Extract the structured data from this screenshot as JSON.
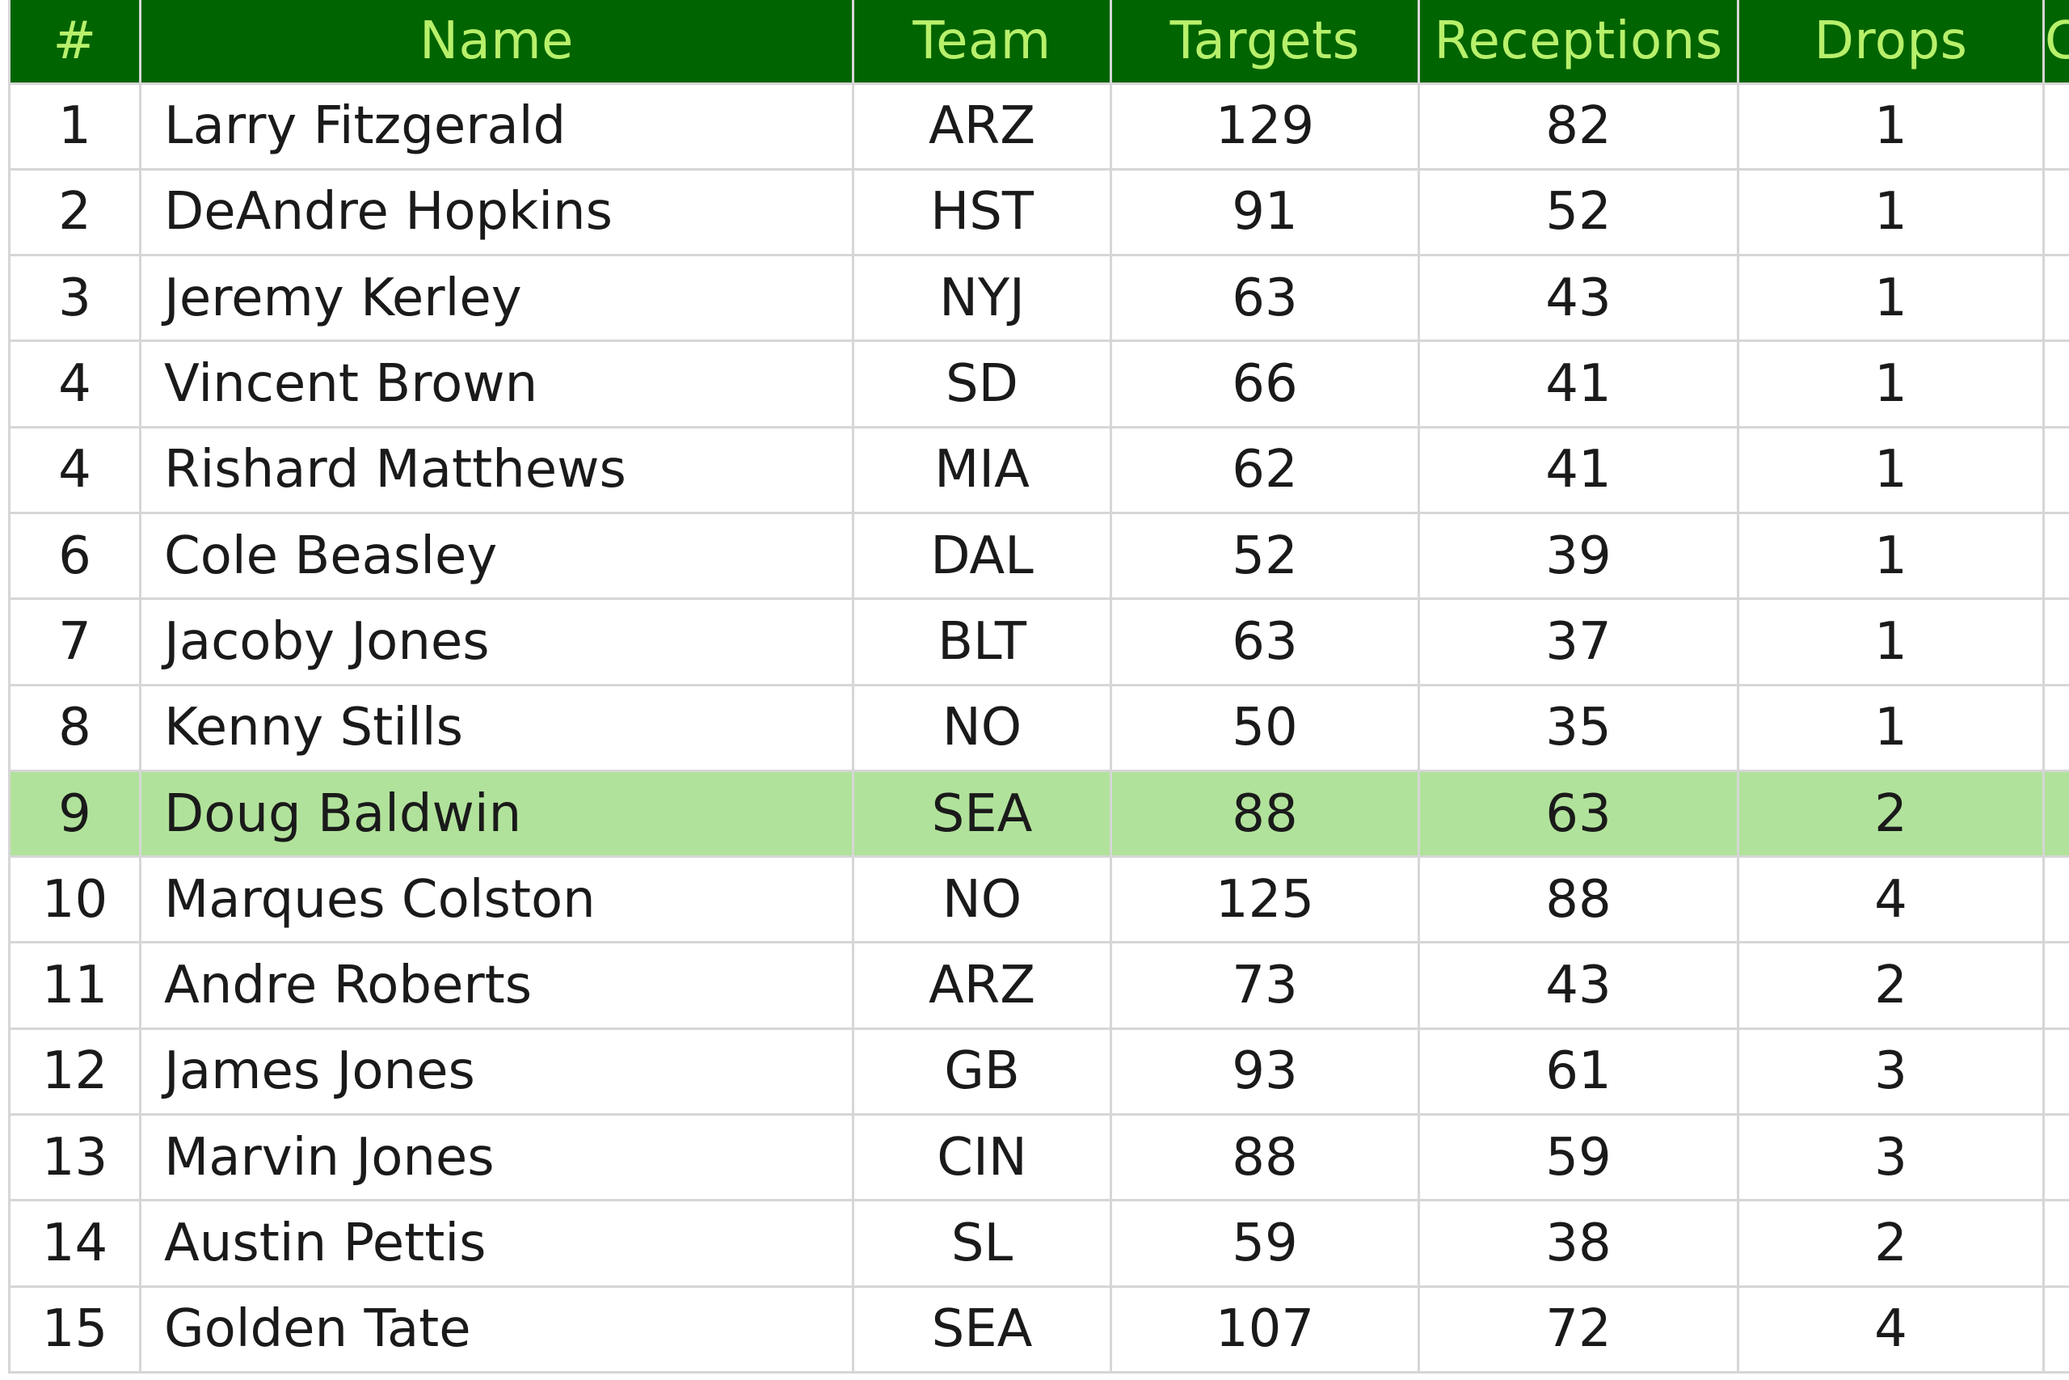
{
  "header": {
    "rank": "#",
    "name": "Name",
    "team": "Team",
    "targets": "Targets",
    "receptions": "Receptions",
    "drops": "Drops",
    "extra": "C"
  },
  "colors": {
    "header_bg": "#006400",
    "header_text": "#b8f06b",
    "highlight_row": "#b1e29b",
    "grid": "#d6d6d6"
  },
  "highlighted_row_index": 8,
  "rows": [
    {
      "rank": "1",
      "name": "Larry Fitzgerald",
      "team": "ARZ",
      "targets": "129",
      "receptions": "82",
      "drops": "1"
    },
    {
      "rank": "2",
      "name": "DeAndre Hopkins",
      "team": "HST",
      "targets": "91",
      "receptions": "52",
      "drops": "1"
    },
    {
      "rank": "3",
      "name": "Jeremy Kerley",
      "team": "NYJ",
      "targets": "63",
      "receptions": "43",
      "drops": "1"
    },
    {
      "rank": "4",
      "name": "Vincent Brown",
      "team": "SD",
      "targets": "66",
      "receptions": "41",
      "drops": "1"
    },
    {
      "rank": "4",
      "name": "Rishard Matthews",
      "team": "MIA",
      "targets": "62",
      "receptions": "41",
      "drops": "1"
    },
    {
      "rank": "6",
      "name": "Cole Beasley",
      "team": "DAL",
      "targets": "52",
      "receptions": "39",
      "drops": "1"
    },
    {
      "rank": "7",
      "name": "Jacoby Jones",
      "team": "BLT",
      "targets": "63",
      "receptions": "37",
      "drops": "1"
    },
    {
      "rank": "8",
      "name": "Kenny Stills",
      "team": "NO",
      "targets": "50",
      "receptions": "35",
      "drops": "1"
    },
    {
      "rank": "9",
      "name": "Doug Baldwin",
      "team": "SEA",
      "targets": "88",
      "receptions": "63",
      "drops": "2"
    },
    {
      "rank": "10",
      "name": "Marques Colston",
      "team": "NO",
      "targets": "125",
      "receptions": "88",
      "drops": "4"
    },
    {
      "rank": "11",
      "name": "Andre Roberts",
      "team": "ARZ",
      "targets": "73",
      "receptions": "43",
      "drops": "2"
    },
    {
      "rank": "12",
      "name": "James Jones",
      "team": "GB",
      "targets": "93",
      "receptions": "61",
      "drops": "3"
    },
    {
      "rank": "13",
      "name": "Marvin Jones",
      "team": "CIN",
      "targets": "88",
      "receptions": "59",
      "drops": "3"
    },
    {
      "rank": "14",
      "name": "Austin Pettis",
      "team": "SL",
      "targets": "59",
      "receptions": "38",
      "drops": "2"
    },
    {
      "rank": "15",
      "name": "Golden Tate",
      "team": "SEA",
      "targets": "107",
      "receptions": "72",
      "drops": "4"
    }
  ]
}
